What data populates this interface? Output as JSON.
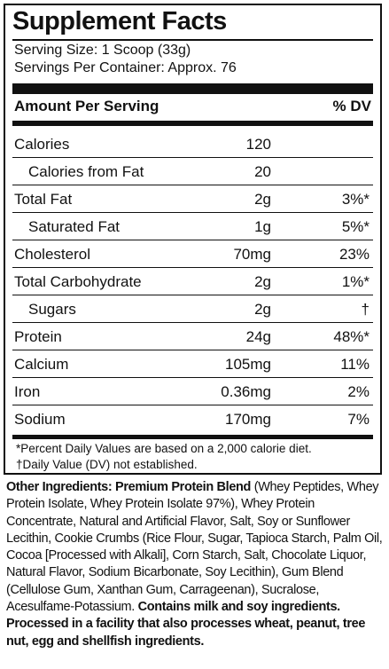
{
  "panel": {
    "title": "Supplement Facts",
    "serving_size": "Serving Size: 1 Scoop (33g)",
    "servings_per_container": "Servings Per Container: Approx. 76",
    "header_amount": "Amount Per Serving",
    "header_dv": "% DV",
    "rows": [
      {
        "name": "Calories",
        "amount": "120",
        "dv": "",
        "indent": false
      },
      {
        "name": "Calories from Fat",
        "amount": "20",
        "dv": "",
        "indent": true
      },
      {
        "name": "Total Fat",
        "amount": "2g",
        "dv": "3%*",
        "indent": false
      },
      {
        "name": "Saturated Fat",
        "amount": "1g",
        "dv": "5%*",
        "indent": true
      },
      {
        "name": "Cholesterol",
        "amount": "70mg",
        "dv": "23%",
        "indent": false
      },
      {
        "name": "Total Carbohydrate",
        "amount": "2g",
        "dv": "1%*",
        "indent": false
      },
      {
        "name": "Sugars",
        "amount": "2g",
        "dv": "†",
        "indent": true
      },
      {
        "name": "Protein",
        "amount": "24g",
        "dv": "48%*",
        "indent": false
      },
      {
        "name": "Calcium",
        "amount": "105mg",
        "dv": "11%",
        "indent": false
      },
      {
        "name": "Iron",
        "amount": "0.36mg",
        "dv": "2%",
        "indent": false
      },
      {
        "name": "Sodium",
        "amount": "170mg",
        "dv": "7%",
        "indent": false
      }
    ],
    "footnote_1": "*Percent Daily Values are based on a 2,000 calorie diet.",
    "footnote_2": "†Daily Value (DV) not established."
  },
  "ingredients": {
    "label": "Other Ingredients: Premium Protein Blend",
    "list": " (Whey Peptides, Whey Protein Isolate, Whey Protein Isolate 97%), Whey Protein Concentrate, Natural and Artificial Flavor, Salt, Soy or Sunflower Lecithin, Cookie Crumbs (Rice Flour, Sugar, Tapioca Starch, Palm Oil,  Cocoa [Processed with Alkali], Corn Starch, Salt, Chocolate Liquor, Natural Flavor, Sodium Bicarbonate, Soy Lecithin), Gum Blend (Cellulose Gum, Xanthan Gum, Carrageenan), Sucralose, Acesulfame-Potassium. ",
    "allergen_statement": "Contains milk and soy ingredients. Processed in a facility that also processes wheat, peanut, tree nut, egg and shellfish ingredients."
  }
}
